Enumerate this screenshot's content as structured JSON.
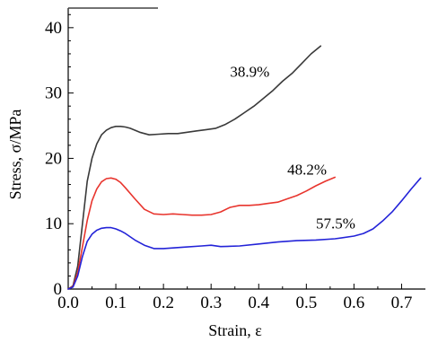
{
  "chart_data": {
    "type": "line",
    "title": "",
    "xlabel": "Strain, ε",
    "ylabel": "Stress, σ/MPa",
    "xlim": [
      0.0,
      0.75
    ],
    "ylim": [
      0,
      43
    ],
    "x_ticks": [
      0.0,
      0.1,
      0.2,
      0.3,
      0.4,
      0.5,
      0.6,
      0.7
    ],
    "x_tick_labels": [
      "0.0",
      "0.1",
      "0.2",
      "0.3",
      "0.4",
      "0.5",
      "0.6",
      "0.7"
    ],
    "y_ticks": [
      0,
      10,
      20,
      30,
      40
    ],
    "y_tick_labels": [
      "0",
      "10",
      "20",
      "30",
      "40"
    ],
    "grid": false,
    "legend": "none",
    "series": [
      {
        "label": "38.9%",
        "color": "#3a3a3a",
        "x": [
          0.0,
          0.01,
          0.02,
          0.03,
          0.04,
          0.05,
          0.06,
          0.07,
          0.08,
          0.09,
          0.1,
          0.11,
          0.12,
          0.13,
          0.15,
          0.17,
          0.19,
          0.21,
          0.23,
          0.25,
          0.27,
          0.29,
          0.31,
          0.33,
          0.35,
          0.37,
          0.39,
          0.41,
          0.43,
          0.45,
          0.47,
          0.49,
          0.51,
          0.53
        ],
        "y": [
          0.0,
          0.5,
          3.5,
          10.0,
          16.5,
          20.0,
          22.2,
          23.6,
          24.3,
          24.7,
          24.9,
          24.9,
          24.8,
          24.6,
          24.0,
          23.6,
          23.7,
          23.8,
          23.8,
          24.0,
          24.2,
          24.4,
          24.6,
          25.2,
          26.0,
          27.0,
          28.0,
          29.2,
          30.4,
          31.8,
          33.0,
          34.5,
          36.0,
          37.2
        ]
      },
      {
        "label": "48.2%",
        "color": "#e8352e",
        "x": [
          0.0,
          0.01,
          0.02,
          0.03,
          0.04,
          0.05,
          0.06,
          0.07,
          0.08,
          0.09,
          0.1,
          0.11,
          0.12,
          0.14,
          0.16,
          0.18,
          0.2,
          0.22,
          0.24,
          0.26,
          0.28,
          0.3,
          0.32,
          0.34,
          0.36,
          0.38,
          0.4,
          0.42,
          0.44,
          0.46,
          0.48,
          0.5,
          0.52,
          0.54,
          0.56
        ],
        "y": [
          0.0,
          0.4,
          2.5,
          6.5,
          10.5,
          13.5,
          15.3,
          16.4,
          16.9,
          17.0,
          16.8,
          16.3,
          15.5,
          13.8,
          12.2,
          11.5,
          11.4,
          11.5,
          11.4,
          11.3,
          11.3,
          11.4,
          11.8,
          12.5,
          12.8,
          12.8,
          12.9,
          13.1,
          13.3,
          13.8,
          14.3,
          15.0,
          15.8,
          16.5,
          17.1
        ]
      },
      {
        "label": "57.5%",
        "color": "#2323d8",
        "x": [
          0.0,
          0.01,
          0.02,
          0.03,
          0.04,
          0.05,
          0.06,
          0.07,
          0.08,
          0.09,
          0.1,
          0.11,
          0.12,
          0.14,
          0.16,
          0.18,
          0.2,
          0.24,
          0.28,
          0.3,
          0.32,
          0.36,
          0.4,
          0.44,
          0.48,
          0.52,
          0.56,
          0.6,
          0.62,
          0.64,
          0.66,
          0.68,
          0.7,
          0.72,
          0.74
        ],
        "y": [
          0.0,
          0.3,
          2.0,
          5.0,
          7.3,
          8.4,
          9.0,
          9.3,
          9.4,
          9.4,
          9.2,
          8.9,
          8.5,
          7.5,
          6.7,
          6.2,
          6.2,
          6.4,
          6.6,
          6.7,
          6.5,
          6.6,
          6.9,
          7.2,
          7.4,
          7.5,
          7.7,
          8.1,
          8.5,
          9.2,
          10.4,
          11.8,
          13.5,
          15.3,
          17.0
        ]
      }
    ],
    "annotations": [
      {
        "text": "38.9%",
        "x": 0.34,
        "y": 32.5,
        "series": 0
      },
      {
        "text": "48.2%",
        "x": 0.46,
        "y": 17.5,
        "series": 1
      },
      {
        "text": "57.5%",
        "x": 0.52,
        "y": 9.3,
        "series": 2
      }
    ]
  }
}
